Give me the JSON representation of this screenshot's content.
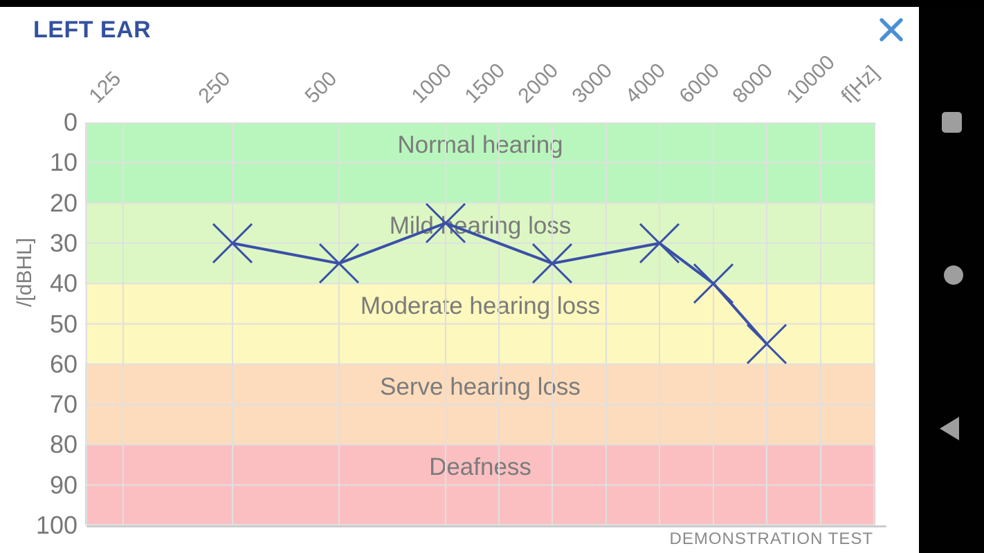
{
  "header": {
    "title": "LEFT EAR",
    "title_color": "#33519e",
    "close_icon": "close-x",
    "close_color": "#4a90d6"
  },
  "watermark": "DEMONSTRATION TEST",
  "android_nav": {
    "background": "#000000",
    "icon_color": "#9e9e9e",
    "buttons": [
      {
        "name": "recents",
        "icon": "square-icon"
      },
      {
        "name": "home",
        "icon": "circle-icon"
      },
      {
        "name": "back",
        "icon": "triangle-left-icon"
      }
    ]
  },
  "chart_data": {
    "type": "line",
    "title": "LEFT EAR",
    "x_unit_label": "f[Hz]",
    "y_axis_label": "/[dBHL]",
    "x_ticks": [
      "125",
      "250",
      "500",
      "1000",
      "1500",
      "2000",
      "3000",
      "4000",
      "6000",
      "8000",
      "10000"
    ],
    "y_ticks": [
      "0",
      "10",
      "20",
      "30",
      "40",
      "50",
      "60",
      "70",
      "80",
      "90",
      "100"
    ],
    "ylim": [
      0,
      100
    ],
    "y_inverted": true,
    "grid": true,
    "grid_color": "#e0e0e0",
    "bands": [
      {
        "label": "Normal hearing",
        "from": 0,
        "to": 20,
        "color": "#b9f6bd"
      },
      {
        "label": "Mild hearing loss",
        "from": 20,
        "to": 40,
        "color": "#dcf7c3"
      },
      {
        "label": "Moderate hearing loss",
        "from": 40,
        "to": 60,
        "color": "#fdf8bd"
      },
      {
        "label": "Serve hearing loss",
        "from": 60,
        "to": 80,
        "color": "#fcdcbd"
      },
      {
        "label": "Deafness",
        "from": 80,
        "to": 100,
        "color": "#fbbfc1"
      }
    ],
    "series": [
      {
        "name": "left-ear-threshold",
        "marker": "x",
        "color": "#3a50a8",
        "points": [
          {
            "freq": 250,
            "db": 30
          },
          {
            "freq": 500,
            "db": 35
          },
          {
            "freq": 1000,
            "db": 25
          },
          {
            "freq": 2000,
            "db": 35
          },
          {
            "freq": 4000,
            "db": 30
          },
          {
            "freq": 6000,
            "db": 40
          },
          {
            "freq": 8000,
            "db": 55
          }
        ]
      }
    ],
    "footer": "DEMONSTRATION TEST"
  }
}
